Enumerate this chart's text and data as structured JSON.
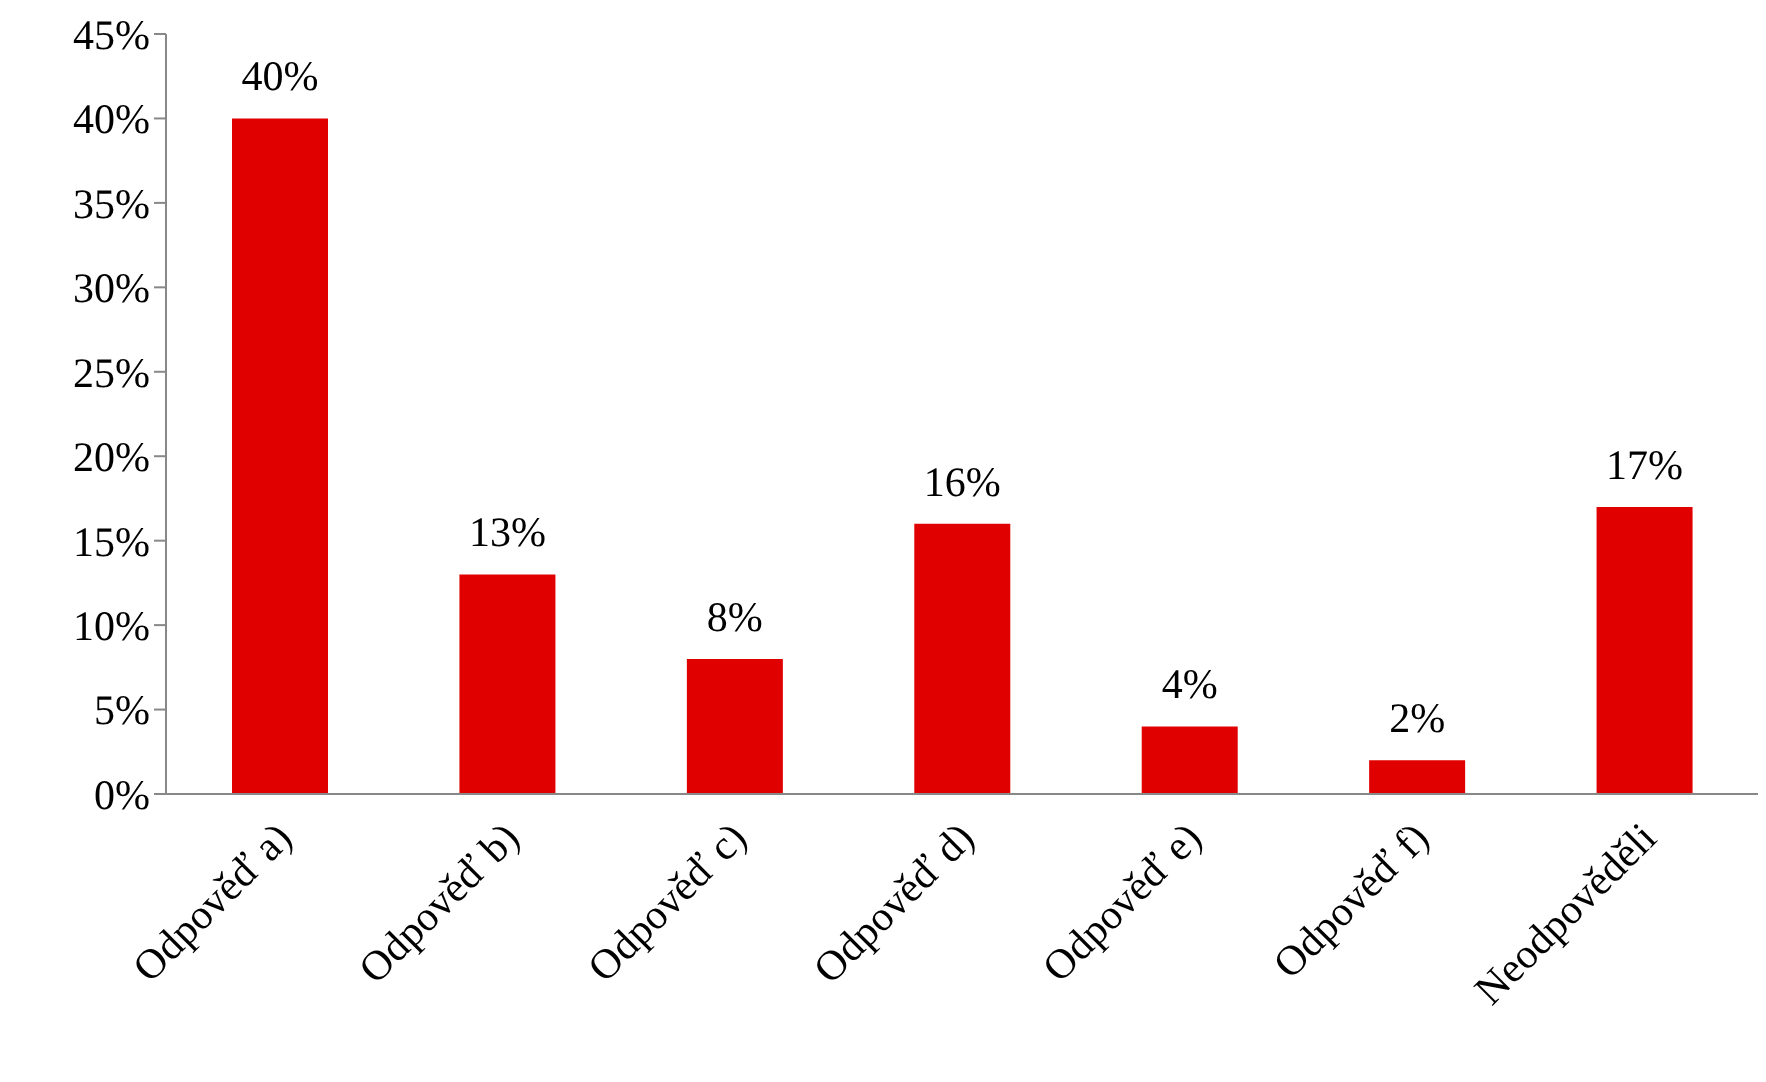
{
  "chart_data": {
    "type": "bar",
    "categories": [
      "Odpověď a)",
      "Odpověď b)",
      "Odpověď c)",
      "Odpověď d)",
      "Odpověď e)",
      "Odpověď f)",
      "Neodpověděli"
    ],
    "values": [
      40,
      13,
      8,
      16,
      4,
      2,
      17
    ],
    "value_labels": [
      "40%",
      "13%",
      "8%",
      "16%",
      "4%",
      "2%",
      "17%"
    ],
    "color": "#e00000",
    "ylim": [
      0,
      45
    ],
    "yticks": [
      {
        "value": 0,
        "label": "0%"
      },
      {
        "value": 5,
        "label": "5%"
      },
      {
        "value": 10,
        "label": "10%"
      },
      {
        "value": 15,
        "label": "15%"
      },
      {
        "value": 20,
        "label": "20%"
      },
      {
        "value": 25,
        "label": "25%"
      },
      {
        "value": 30,
        "label": "30%"
      },
      {
        "value": 35,
        "label": "35%"
      },
      {
        "value": 40,
        "label": "40%"
      },
      {
        "value": 45,
        "label": "45%"
      }
    ],
    "grid": false,
    "legend": false
  }
}
